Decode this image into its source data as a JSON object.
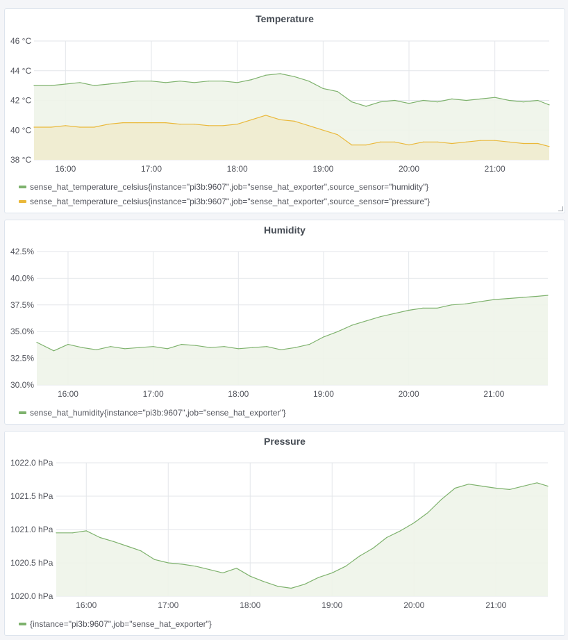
{
  "colors": {
    "grid": "#e3e6ea",
    "green": "#7eb26d",
    "green_fill": "#eef4e9",
    "yellow": "#eab839",
    "yellow_fill": "#f0eccf"
  },
  "x_ticks": [
    "16:00",
    "17:00",
    "18:00",
    "19:00",
    "20:00",
    "21:00"
  ],
  "chart_data": [
    {
      "type": "line",
      "title": "Temperature",
      "ylim": [
        38,
        46
      ],
      "y_ticks": [
        "38 °C",
        "40 °C",
        "42 °C",
        "44 °C",
        "46 °C"
      ],
      "x": [
        "15:38",
        "15:50",
        "16:00",
        "16:10",
        "16:20",
        "16:30",
        "16:40",
        "16:50",
        "17:00",
        "17:10",
        "17:20",
        "17:30",
        "17:40",
        "17:50",
        "18:00",
        "18:10",
        "18:20",
        "18:30",
        "18:40",
        "18:50",
        "19:00",
        "19:10",
        "19:20",
        "19:30",
        "19:40",
        "19:50",
        "20:00",
        "20:10",
        "20:20",
        "20:30",
        "20:40",
        "20:50",
        "21:00",
        "21:10",
        "21:20",
        "21:30",
        "21:38"
      ],
      "series": [
        {
          "name": "sense_hat_temperature_celsius{instance=\"pi3b:9607\",job=\"sense_hat_exporter\",source_sensor=\"humidity\"}",
          "color": "green",
          "values": [
            43.0,
            43.0,
            43.1,
            43.2,
            43.0,
            43.1,
            43.2,
            43.3,
            43.3,
            43.2,
            43.3,
            43.2,
            43.3,
            43.3,
            43.2,
            43.4,
            43.7,
            43.8,
            43.6,
            43.3,
            42.8,
            42.6,
            41.9,
            41.6,
            41.9,
            42.0,
            41.8,
            42.0,
            41.9,
            42.1,
            42.0,
            42.1,
            42.2,
            42.0,
            41.9,
            42.0,
            41.7
          ]
        },
        {
          "name": "sense_hat_temperature_celsius{instance=\"pi3b:9607\",job=\"sense_hat_exporter\",source_sensor=\"pressure\"}",
          "color": "yellow",
          "values": [
            40.2,
            40.2,
            40.3,
            40.2,
            40.2,
            40.4,
            40.5,
            40.5,
            40.5,
            40.5,
            40.4,
            40.4,
            40.3,
            40.3,
            40.4,
            40.7,
            41.0,
            40.7,
            40.6,
            40.3,
            40.0,
            39.7,
            39.0,
            39.0,
            39.2,
            39.2,
            39.0,
            39.2,
            39.2,
            39.1,
            39.2,
            39.3,
            39.3,
            39.2,
            39.1,
            39.1,
            38.9
          ]
        }
      ]
    },
    {
      "type": "line",
      "title": "Humidity",
      "ylim": [
        30,
        42.5
      ],
      "y_ticks": [
        "30.0%",
        "32.5%",
        "35.0%",
        "37.5%",
        "40.0%",
        "42.5%"
      ],
      "x": [
        "15:38",
        "15:50",
        "16:00",
        "16:10",
        "16:20",
        "16:30",
        "16:40",
        "16:50",
        "17:00",
        "17:10",
        "17:20",
        "17:30",
        "17:40",
        "17:50",
        "18:00",
        "18:10",
        "18:20",
        "18:30",
        "18:40",
        "18:50",
        "19:00",
        "19:10",
        "19:20",
        "19:30",
        "19:40",
        "19:50",
        "20:00",
        "20:10",
        "20:20",
        "20:30",
        "20:40",
        "20:50",
        "21:00",
        "21:10",
        "21:20",
        "21:30",
        "21:38"
      ],
      "series": [
        {
          "name": "sense_hat_humidity{instance=\"pi3b:9607\",job=\"sense_hat_exporter\"}",
          "color": "green",
          "values": [
            34.0,
            33.2,
            33.8,
            33.5,
            33.3,
            33.6,
            33.4,
            33.5,
            33.6,
            33.4,
            33.8,
            33.7,
            33.5,
            33.6,
            33.4,
            33.5,
            33.6,
            33.3,
            33.5,
            33.8,
            34.5,
            35.0,
            35.6,
            36.0,
            36.4,
            36.7,
            37.0,
            37.2,
            37.2,
            37.5,
            37.6,
            37.8,
            38.0,
            38.1,
            38.2,
            38.3,
            38.4
          ]
        }
      ]
    },
    {
      "type": "line",
      "title": "Pressure",
      "ylim": [
        1020.0,
        1022.0
      ],
      "y_ticks": [
        "1020.0 hPa",
        "1020.5 hPa",
        "1021.0 hPa",
        "1021.5 hPa",
        "1022.0 hPa"
      ],
      "x": [
        "15:38",
        "15:50",
        "16:00",
        "16:10",
        "16:20",
        "16:30",
        "16:40",
        "16:50",
        "17:00",
        "17:10",
        "17:20",
        "17:30",
        "17:40",
        "17:50",
        "18:00",
        "18:10",
        "18:20",
        "18:30",
        "18:40",
        "18:50",
        "19:00",
        "19:10",
        "19:20",
        "19:30",
        "19:40",
        "19:50",
        "20:00",
        "20:10",
        "20:20",
        "20:30",
        "20:40",
        "20:50",
        "21:00",
        "21:10",
        "21:20",
        "21:30",
        "21:38"
      ],
      "series": [
        {
          "name": "{instance=\"pi3b:9607\",job=\"sense_hat_exporter\"}",
          "color": "green",
          "values": [
            1020.95,
            1020.95,
            1020.98,
            1020.88,
            1020.82,
            1020.75,
            1020.68,
            1020.55,
            1020.5,
            1020.48,
            1020.45,
            1020.4,
            1020.35,
            1020.42,
            1020.3,
            1020.22,
            1020.15,
            1020.12,
            1020.18,
            1020.28,
            1020.35,
            1020.45,
            1020.6,
            1020.72,
            1020.88,
            1020.98,
            1021.1,
            1021.25,
            1021.45,
            1021.62,
            1021.68,
            1021.65,
            1021.62,
            1021.6,
            1021.65,
            1021.7,
            1021.65
          ]
        }
      ]
    }
  ]
}
